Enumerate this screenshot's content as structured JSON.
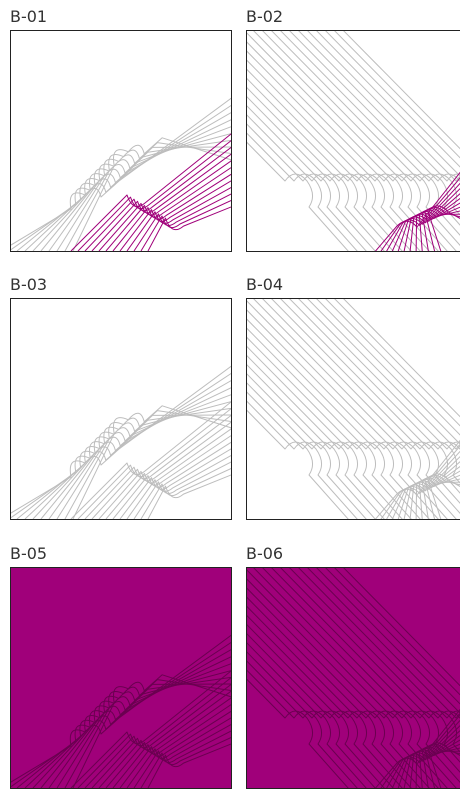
{
  "tiles": [
    {
      "id": "b01",
      "label": "B-01",
      "variant": "a",
      "background": "#ffffff",
      "lines": "#bdbdbd",
      "accent": "#a0007a",
      "accent_on": true
    },
    {
      "id": "b02",
      "label": "B-02",
      "variant": "b",
      "background": "#ffffff",
      "lines": "#bdbdbd",
      "accent": "#a0007a",
      "accent_on": true
    },
    {
      "id": "b03",
      "label": "B-03",
      "variant": "a",
      "background": "#ffffff",
      "lines": "#bdbdbd",
      "accent": "#bdbdbd",
      "accent_on": false
    },
    {
      "id": "b04",
      "label": "B-04",
      "variant": "b",
      "background": "#ffffff",
      "lines": "#bdbdbd",
      "accent": "#bdbdbd",
      "accent_on": false
    },
    {
      "id": "b05",
      "label": "B-05",
      "variant": "a",
      "background": "#a0007a",
      "lines": "#6a0050",
      "accent": "#6a0050",
      "accent_on": false
    },
    {
      "id": "b06",
      "label": "B-06",
      "variant": "b",
      "background": "#a0007a",
      "lines": "#6a0050",
      "accent": "#6a0050",
      "accent_on": false
    }
  ]
}
